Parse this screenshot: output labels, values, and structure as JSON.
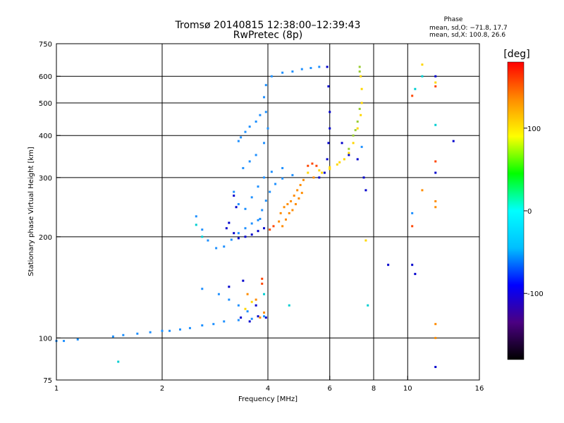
{
  "chart_data": {
    "type": "scatter",
    "title": "Tromsø 20140815 12:38:00–12:39:43",
    "subtitle": "RwPretec (8p)",
    "xlabel": "Frequency [MHz]",
    "ylabel": "Stationary phase Virtual Height [km]",
    "x_scale": "log",
    "y_scale": "log",
    "xlim": [
      1,
      16
    ],
    "ylim": [
      75,
      750
    ],
    "xticks": [
      1,
      2,
      4,
      6,
      8,
      10,
      16
    ],
    "yticks": [
      75,
      100,
      200,
      300,
      400,
      500,
      600,
      750
    ],
    "grid": true,
    "phase_stats": {
      "heading": "Phase",
      "line_o": "mean, sd,O: −71.8, 17.7",
      "line_x": "mean, sd,X: 100.8, 26.6"
    },
    "colorbar": {
      "label": "[deg]",
      "range": [
        -180,
        180
      ],
      "ticks": [
        100,
        0,
        -100
      ],
      "colors": [
        "#000000",
        "#4b0082",
        "#0000ff",
        "#00bfff",
        "#00ffff",
        "#00ff00",
        "#ffff00",
        "#ff8c00",
        "#ff0000"
      ]
    },
    "series": [
      {
        "color": "#1e90ff",
        "points": [
          [
            1.0,
            98
          ],
          [
            1.05,
            98
          ],
          [
            1.15,
            99
          ],
          [
            1.45,
            101
          ],
          [
            1.55,
            102
          ],
          [
            1.7,
            103
          ],
          [
            1.85,
            104
          ],
          [
            2.0,
            105
          ],
          [
            2.1,
            105
          ],
          [
            2.25,
            106
          ],
          [
            2.4,
            107
          ],
          [
            2.6,
            109
          ],
          [
            2.8,
            110
          ],
          [
            3.0,
            112
          ],
          [
            3.3,
            113
          ],
          [
            3.6,
            114
          ],
          [
            3.9,
            116
          ],
          [
            2.6,
            140
          ],
          [
            2.9,
            135
          ],
          [
            3.1,
            130
          ],
          [
            3.3,
            125
          ],
          [
            3.5,
            120
          ],
          [
            2.5,
            230
          ],
          [
            2.6,
            210
          ],
          [
            2.7,
            195
          ],
          [
            2.85,
            185
          ],
          [
            3.0,
            187
          ],
          [
            3.15,
            196
          ],
          [
            3.3,
            205
          ],
          [
            3.45,
            212
          ],
          [
            3.6,
            219
          ],
          [
            3.75,
            224
          ],
          [
            3.8,
            226
          ],
          [
            3.85,
            240
          ],
          [
            3.95,
            256
          ],
          [
            4.05,
            272
          ],
          [
            4.2,
            287
          ],
          [
            4.4,
            298
          ],
          [
            4.7,
            305
          ],
          [
            3.2,
            272
          ],
          [
            3.3,
            250
          ],
          [
            3.45,
            242
          ],
          [
            3.6,
            262
          ],
          [
            3.75,
            282
          ],
          [
            3.9,
            300
          ],
          [
            4.1,
            312
          ],
          [
            4.4,
            320
          ],
          [
            3.4,
            320
          ],
          [
            3.55,
            335
          ],
          [
            3.7,
            350
          ],
          [
            3.9,
            380
          ],
          [
            4.0,
            420
          ],
          [
            3.95,
            470
          ],
          [
            3.9,
            520
          ],
          [
            3.95,
            565
          ],
          [
            4.1,
            600
          ],
          [
            4.4,
            615
          ],
          [
            4.7,
            620
          ],
          [
            5.0,
            630
          ],
          [
            5.3,
            635
          ],
          [
            5.6,
            640
          ],
          [
            3.3,
            385
          ],
          [
            3.35,
            395
          ],
          [
            3.45,
            410
          ],
          [
            3.55,
            425
          ],
          [
            3.7,
            440
          ],
          [
            3.8,
            460
          ],
          [
            7.4,
            370
          ],
          [
            10.3,
            235
          ]
        ]
      },
      {
        "color": "#0000cd",
        "points": [
          [
            3.05,
            212
          ],
          [
            3.1,
            220
          ],
          [
            3.2,
            205
          ],
          [
            3.3,
            198
          ],
          [
            3.45,
            200
          ],
          [
            3.6,
            203
          ],
          [
            3.75,
            208
          ],
          [
            3.9,
            212
          ],
          [
            3.2,
            265
          ],
          [
            3.25,
            245
          ],
          [
            3.35,
            115
          ],
          [
            3.55,
            112
          ],
          [
            3.75,
            116
          ],
          [
            3.95,
            115
          ],
          [
            3.1,
            142
          ],
          [
            3.4,
            148
          ],
          [
            3.7,
            125
          ],
          [
            5.9,
            640
          ],
          [
            5.95,
            560
          ],
          [
            6.0,
            470
          ],
          [
            6.0,
            420
          ],
          [
            5.95,
            380
          ],
          [
            5.9,
            340
          ],
          [
            5.8,
            310
          ],
          [
            5.6,
            300
          ],
          [
            6.5,
            380
          ],
          [
            6.8,
            350
          ],
          [
            7.2,
            340
          ],
          [
            7.5,
            300
          ],
          [
            7.6,
            275
          ],
          [
            8.8,
            165
          ],
          [
            10.3,
            165
          ],
          [
            10.5,
            155
          ],
          [
            12.0,
            600
          ],
          [
            12.0,
            310
          ],
          [
            13.5,
            385
          ],
          [
            12.0,
            82
          ]
        ]
      },
      {
        "color": "#00ced1",
        "points": [
          [
            1.5,
            85
          ],
          [
            2.5,
            217
          ],
          [
            2.6,
            200
          ],
          [
            3.9,
            135
          ],
          [
            4.6,
            125
          ],
          [
            7.7,
            125
          ],
          [
            10.5,
            550
          ],
          [
            11.0,
            600
          ],
          [
            12.0,
            430
          ]
        ]
      },
      {
        "color": "#ff8c00",
        "points": [
          [
            4.3,
            222
          ],
          [
            4.35,
            235
          ],
          [
            4.45,
            245
          ],
          [
            4.55,
            250
          ],
          [
            4.65,
            255
          ],
          [
            4.75,
            265
          ],
          [
            4.85,
            275
          ],
          [
            4.95,
            285
          ],
          [
            5.05,
            295
          ],
          [
            4.4,
            215
          ],
          [
            4.5,
            225
          ],
          [
            4.6,
            235
          ],
          [
            4.7,
            240
          ],
          [
            4.8,
            250
          ],
          [
            4.9,
            260
          ],
          [
            5.0,
            270
          ],
          [
            3.8,
            115
          ],
          [
            3.9,
            119
          ],
          [
            3.7,
            130
          ],
          [
            3.5,
            135
          ],
          [
            5.4,
            300
          ],
          [
            11.0,
            275
          ],
          [
            12.0,
            245
          ],
          [
            12.0,
            255
          ],
          [
            12.0,
            110
          ],
          [
            12.0,
            100
          ]
        ]
      },
      {
        "color": "#ff4500",
        "points": [
          [
            4.05,
            210
          ],
          [
            4.15,
            215
          ],
          [
            5.2,
            325
          ],
          [
            5.35,
            330
          ],
          [
            5.5,
            325
          ],
          [
            3.85,
            150
          ],
          [
            3.85,
            145
          ],
          [
            10.3,
            525
          ],
          [
            10.3,
            215
          ],
          [
            12.0,
            335
          ],
          [
            12.0,
            560
          ]
        ]
      },
      {
        "color": "#ffd700",
        "points": [
          [
            5.7,
            310
          ],
          [
            6.0,
            318
          ],
          [
            6.3,
            328
          ],
          [
            6.6,
            340
          ],
          [
            6.8,
            355
          ],
          [
            7.0,
            380
          ],
          [
            7.2,
            420
          ],
          [
            7.35,
            460
          ],
          [
            7.4,
            500
          ],
          [
            7.4,
            550
          ],
          [
            7.35,
            600
          ],
          [
            5.2,
            310
          ],
          [
            5.6,
            315
          ],
          [
            6.0,
            322
          ],
          [
            6.4,
            333
          ],
          [
            3.45,
            122
          ],
          [
            3.6,
            128
          ],
          [
            7.6,
            195
          ],
          [
            11.0,
            650
          ],
          [
            12.0,
            575
          ]
        ]
      },
      {
        "color": "#9acd32",
        "points": [
          [
            7.1,
            415
          ],
          [
            7.2,
            440
          ],
          [
            7.3,
            480
          ],
          [
            7.3,
            620
          ],
          [
            7.3,
            640
          ],
          [
            7.0,
            400
          ],
          [
            6.8,
            365
          ]
        ]
      }
    ]
  }
}
